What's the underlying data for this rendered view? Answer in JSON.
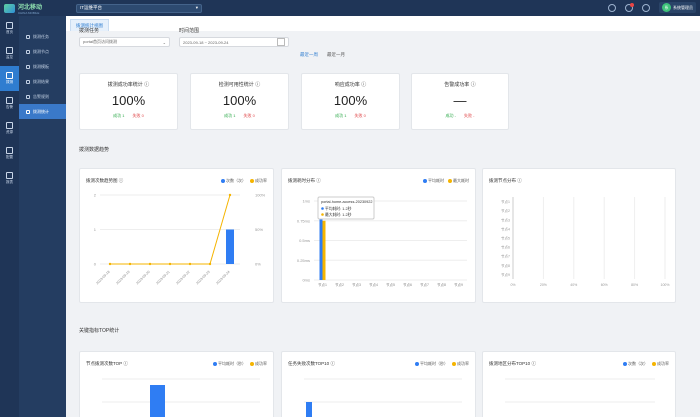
{
  "colors": {
    "nav": "#1f3557",
    "accent": "#2f7dd0",
    "blue_series": "#2f7df3",
    "orange_series": "#f5b400",
    "success": "#28a745",
    "danger": "#e0484a"
  },
  "header": {
    "logo_text": "河北移动",
    "logo_sub": "CHINA MOBILE",
    "platform_label": "IT运维平台",
    "user_name": "系统管理员",
    "avatar_text": "系"
  },
  "leftnav": [
    {
      "label": "首页",
      "icon": "home-icon"
    },
    {
      "label": "监控",
      "icon": "monitor-icon"
    },
    {
      "label": "拨测",
      "icon": "probe-icon",
      "active": true
    },
    {
      "label": "告警",
      "icon": "alert-icon"
    },
    {
      "label": "资源",
      "icon": "resource-icon"
    },
    {
      "label": "配置",
      "icon": "settings-icon"
    },
    {
      "label": "报表",
      "icon": "report-icon"
    }
  ],
  "subnav": [
    {
      "label": "拨测任务",
      "icon": "task-icon"
    },
    {
      "label": "拨测节点",
      "icon": "node-icon"
    },
    {
      "label": "拨测模板",
      "icon": "template-icon"
    },
    {
      "label": "拨测结果",
      "icon": "result-icon"
    },
    {
      "label": "告警规则",
      "icon": "rule-icon"
    },
    {
      "label": "拨测统计",
      "icon": "stats-icon",
      "active": true
    }
  ],
  "tab": {
    "label": "拨测统计视图"
  },
  "filter": {
    "task_label": "拨测任务",
    "task_value": "portal首页访问拨测",
    "time_label": "时间范围",
    "time_value": "2023-09-18 ~ 2023-09-24",
    "links": [
      "最近一周",
      "最近一月"
    ]
  },
  "kpis": [
    {
      "title": "拨测成功率统计",
      "value": "100%",
      "ok": "成功 1",
      "bad": "失败 0"
    },
    {
      "title": "检测可用性统计",
      "value": "100%",
      "ok": "成功 1",
      "bad": "失败 0"
    },
    {
      "title": "响应成功率",
      "value": "100%",
      "ok": "成功 1",
      "bad": "失败 0"
    },
    {
      "title": "告警成功率",
      "value": "—",
      "ok": "成功 -",
      "bad": "失败 -"
    }
  ],
  "section1": "拨测数据趋势",
  "section2": "关键指标TOP统计",
  "charts": [
    {
      "title": "拨测次数趋势图",
      "legend": [
        "次数（次）",
        "成功率"
      ]
    },
    {
      "title": "拨测耗时分布",
      "legend": [
        "平均耗时",
        "最大耗时"
      ],
      "tooltip": {
        "title": "portal-home-access-20230922",
        "rows": [
          "平均耗时: 1.2秒",
          "最大耗时: 1.2秒"
        ]
      }
    },
    {
      "title": "拨测节点分布",
      "legend": []
    },
    {
      "title": "节点拨测次数TOP",
      "legend": [
        "平均耗时（秒）",
        "成功率"
      ]
    },
    {
      "title": "任务失败次数TOP10",
      "legend": [
        "平均耗时（秒）",
        "成功率"
      ]
    },
    {
      "title": "拨测地区分布TOP10",
      "legend": [
        "次数（次）",
        "成功率"
      ]
    }
  ],
  "chart_data": [
    {
      "type": "bar",
      "title": "拨测次数趋势图",
      "categories": [
        "2023-09-18",
        "2023-09-19",
        "2023-09-20",
        "2023-09-21",
        "2023-09-22",
        "2023-09-23",
        "2023-09-24"
      ],
      "series": [
        {
          "name": "次数（次）",
          "type": "bar",
          "values": [
            0,
            0,
            0,
            0,
            0,
            0,
            1
          ]
        },
        {
          "name": "成功率",
          "type": "line",
          "values": [
            0,
            0,
            0,
            0,
            0,
            0,
            100
          ]
        }
      ],
      "y_ticks_left": [
        "0",
        "1",
        "2"
      ],
      "y_ticks_right": [
        "0%",
        "50%",
        "100%"
      ],
      "ylim": [
        0,
        2
      ],
      "ylim_right": [
        0,
        100
      ]
    },
    {
      "type": "bar",
      "title": "拨测耗时分布",
      "categories": [
        "节点1",
        "节点2",
        "节点3",
        "节点4",
        "节点5",
        "节点6",
        "节点7",
        "节点8",
        "节点9"
      ],
      "series": [
        {
          "name": "平均耗时",
          "values": [
            1.2,
            0,
            0,
            0,
            0,
            0,
            0,
            0,
            0
          ]
        },
        {
          "name": "最大耗时",
          "values": [
            1.2,
            0,
            0,
            0,
            0,
            0,
            0,
            0,
            0
          ]
        }
      ],
      "y_ticks_left": [
        "0ms",
        "0.25ms",
        "0.5ms",
        "0.75ms",
        "1ms"
      ]
    },
    {
      "type": "bar",
      "title": "拨测节点分布",
      "categories": [
        "0%",
        "20%",
        "40%",
        "60%",
        "80%",
        "100%"
      ],
      "y_ticks_left": [
        "节点1",
        "节点2",
        "节点3",
        "节点4",
        "节点5",
        "节点6",
        "节点7",
        "节点8",
        "节点9"
      ]
    }
  ]
}
